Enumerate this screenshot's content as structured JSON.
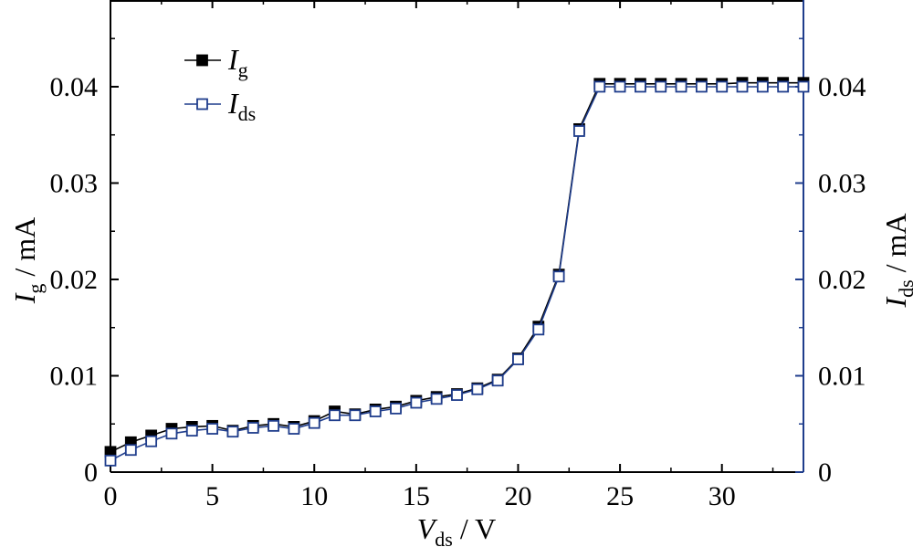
{
  "chart_data": {
    "type": "line",
    "title": "",
    "xlabel": {
      "main": "V",
      "sub": "ds",
      "unit": " / V"
    },
    "ylabel_left": {
      "main": "I",
      "sub": "g",
      "unit": " / mA"
    },
    "ylabel_right": {
      "main": "I",
      "sub": "ds",
      "unit": " / mA"
    },
    "xlim": [
      0,
      34
    ],
    "ylim": [
      0,
      0.049
    ],
    "x_ticks": [
      0,
      5,
      10,
      15,
      20,
      25,
      30
    ],
    "x_tick_labels": [
      "0",
      "5",
      "10",
      "15",
      "20",
      "25",
      "30"
    ],
    "y_ticks": [
      0,
      0.01,
      0.02,
      0.03,
      0.04
    ],
    "y_tick_labels": [
      "0",
      "0.01",
      "0.02",
      "0.03",
      "0.04"
    ],
    "grid": false,
    "legend_position": "top-left",
    "x": [
      0,
      1,
      2,
      3,
      4,
      5,
      6,
      7,
      8,
      9,
      10,
      11,
      12,
      13,
      14,
      15,
      16,
      17,
      18,
      19,
      20,
      21,
      22,
      23,
      24,
      25,
      26,
      27,
      28,
      29,
      30,
      31,
      32,
      33,
      34
    ],
    "series": [
      {
        "name": "I",
        "name_sub": "g",
        "color": "#000000",
        "marker": "filled-square",
        "values": [
          0.0021,
          0.0031,
          0.0038,
          0.0045,
          0.0047,
          0.0048,
          0.0043,
          0.0048,
          0.005,
          0.0047,
          0.0053,
          0.0063,
          0.006,
          0.0065,
          0.0068,
          0.0074,
          0.0078,
          0.0081,
          0.0087,
          0.0096,
          0.0118,
          0.0151,
          0.0205,
          0.0356,
          0.0403,
          0.0403,
          0.0403,
          0.0403,
          0.0403,
          0.0403,
          0.0403,
          0.0404,
          0.0404,
          0.0404,
          0.0404
        ]
      },
      {
        "name": "I",
        "name_sub": "ds",
        "color": "#1f3d8c",
        "marker": "open-square",
        "values": [
          0.0012,
          0.0023,
          0.0032,
          0.004,
          0.0043,
          0.0045,
          0.0042,
          0.0046,
          0.0048,
          0.0045,
          0.0051,
          0.0059,
          0.0059,
          0.0063,
          0.0066,
          0.0072,
          0.0076,
          0.008,
          0.0086,
          0.0095,
          0.0117,
          0.0148,
          0.0203,
          0.0354,
          0.04,
          0.04,
          0.04,
          0.04,
          0.04,
          0.04,
          0.04,
          0.04,
          0.04,
          0.04,
          0.04
        ]
      }
    ]
  }
}
